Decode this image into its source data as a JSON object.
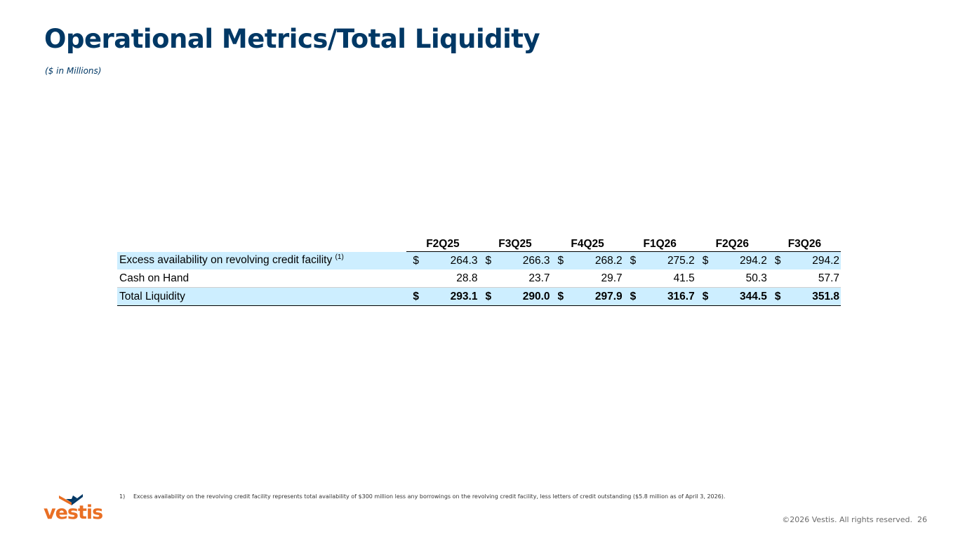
{
  "slide": {
    "title": "Operational Metrics/Total Liquidity",
    "subtitle": "($ in Millions)",
    "page_number": "26",
    "copyright": "©2026 Vestis. All rights reserved."
  },
  "table": {
    "columns": [
      "F2Q25",
      "F3Q25",
      "F4Q25",
      "F1Q26",
      "F2Q26",
      "F3Q26"
    ],
    "rows": {
      "excess": {
        "label": "Excess availability on revolving credit facility",
        "footnote_ref": "(1)",
        "currency": "$",
        "values": [
          "264.3",
          "266.3",
          "268.2",
          "275.2",
          "294.2",
          "294.2"
        ]
      },
      "cash": {
        "label": "Cash on Hand",
        "values": [
          "28.8",
          "23.7",
          "29.7",
          "41.5",
          "50.3",
          "57.7"
        ]
      },
      "total": {
        "label": "Total Liquidity",
        "currency": "$",
        "values": [
          "293.1",
          "290.0",
          "297.9",
          "316.7",
          "344.5",
          "351.8"
        ]
      }
    }
  },
  "footnote": {
    "number": "1)",
    "text": "Excess availability on the revolving credit facility represents total availability of $300 million less any borrowings on the revolving credit facility, less letters of credit outstanding ($5.8 million as of April 3, 2026)."
  },
  "logo": {
    "wordmark": "vestis",
    "colors": {
      "navy": "#003865",
      "orange": "#e96f24"
    }
  }
}
